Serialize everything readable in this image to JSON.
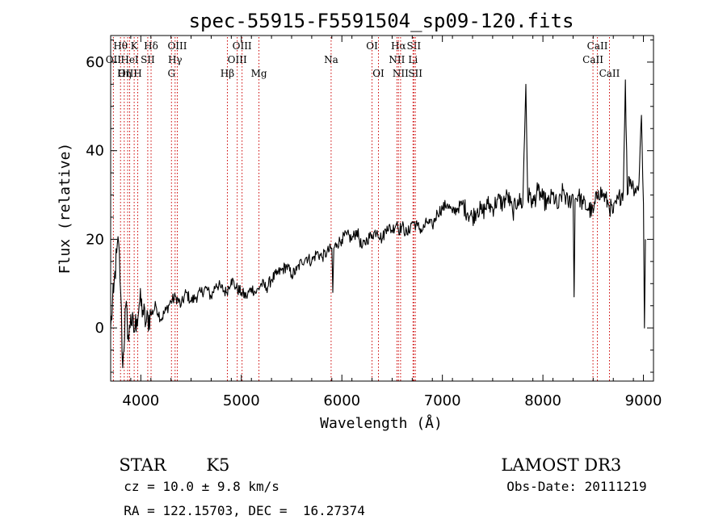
{
  "chart_data": {
    "type": "line",
    "title": "spec-55915-F5591504_sp09-120.fits",
    "xlabel": "Wavelength (Å)",
    "ylabel": "Flux (relative)",
    "xlim": [
      3700,
      9100
    ],
    "ylim": [
      -12,
      66
    ],
    "xticks": [
      4000,
      5000,
      6000,
      7000,
      8000,
      9000
    ],
    "yticks": [
      0,
      20,
      40,
      60
    ],
    "grid": false,
    "series": [
      {
        "name": "flux",
        "x": [
          3700,
          3730,
          3760,
          3780,
          3800,
          3820,
          3850,
          3880,
          3900,
          3930,
          3960,
          3990,
          4020,
          4050,
          4100,
          4150,
          4200,
          4250,
          4300,
          4350,
          4400,
          4450,
          4500,
          4550,
          4600,
          4650,
          4700,
          4750,
          4800,
          4850,
          4900,
          4950,
          5000,
          5050,
          5100,
          5150,
          5200,
          5250,
          5300,
          5350,
          5400,
          5450,
          5500,
          5550,
          5600,
          5650,
          5700,
          5750,
          5800,
          5850,
          5900,
          5910,
          5920,
          5950,
          6000,
          6050,
          6100,
          6150,
          6200,
          6250,
          6300,
          6350,
          6400,
          6450,
          6500,
          6550,
          6563,
          6600,
          6650,
          6700,
          6750,
          6800,
          6850,
          6900,
          6950,
          7000,
          7050,
          7100,
          7150,
          7200,
          7250,
          7300,
          7350,
          7400,
          7450,
          7500,
          7550,
          7600,
          7650,
          7700,
          7750,
          7800,
          7830,
          7850,
          7870,
          7900,
          7950,
          8000,
          8050,
          8100,
          8150,
          8200,
          8250,
          8300,
          8310,
          8320,
          8350,
          8400,
          8450,
          8500,
          8550,
          8600,
          8650,
          8700,
          8750,
          8800,
          8820,
          8840,
          8860,
          8900,
          8950,
          8980,
          9000,
          9010,
          9020
        ],
        "y": [
          0,
          8,
          17,
          19,
          8,
          -9,
          5,
          -3,
          3,
          -1,
          2,
          6,
          4,
          1,
          3,
          5,
          2,
          4,
          6,
          7,
          5,
          8,
          6,
          7,
          8,
          9,
          7,
          10,
          9,
          8,
          11,
          9,
          8,
          7,
          9,
          8,
          10,
          9,
          11,
          12,
          13,
          14,
          12,
          13,
          15,
          16,
          15,
          17,
          16,
          17,
          18,
          8,
          18,
          19,
          20,
          21,
          20,
          22,
          18,
          20,
          21,
          22,
          20,
          23,
          22,
          24,
          22,
          23,
          21,
          24,
          23,
          22,
          24,
          23,
          26,
          27,
          28,
          26,
          27,
          28,
          26,
          25,
          27,
          26,
          28,
          27,
          29,
          28,
          30,
          26,
          29,
          28,
          55,
          29,
          30,
          28,
          31,
          29,
          28,
          30,
          27,
          31,
          28,
          30,
          7,
          29,
          30,
          28,
          27,
          26,
          31,
          30,
          28,
          26,
          29,
          31,
          56,
          30,
          34,
          32,
          31,
          48,
          28,
          0,
          20
        ]
      }
    ],
    "line_markers": [
      {
        "label": "Hθ",
        "wave": 3798,
        "row": 1
      },
      {
        "label": "OII",
        "wave": 3727,
        "row": 2
      },
      {
        "label": "OIII",
        "wave": 3869,
        "row": 3
      },
      {
        "label": "K",
        "wave": 3934,
        "row": 1
      },
      {
        "label": "H",
        "wave": 3969,
        "row": 3
      },
      {
        "label": "HeI",
        "wave": 3889,
        "row": 2
      },
      {
        "label": "Hη",
        "wave": 3835,
        "row": 3
      },
      {
        "label": "SII",
        "wave": 4069,
        "row": 2
      },
      {
        "label": "Hδ",
        "wave": 4102,
        "row": 1
      },
      {
        "label": "OIII",
        "wave": 4363,
        "row": 1
      },
      {
        "label": "Hγ",
        "wave": 4341,
        "row": 2
      },
      {
        "label": "G",
        "wave": 4305,
        "row": 3
      },
      {
        "label": "OIII",
        "wave": 5007,
        "row": 1
      },
      {
        "label": "OIII",
        "wave": 4959,
        "row": 2
      },
      {
        "label": "Hβ",
        "wave": 4861,
        "row": 3
      },
      {
        "label": "Mg",
        "wave": 5175,
        "row": 3
      },
      {
        "label": "Na",
        "wave": 5893,
        "row": 2
      },
      {
        "label": "OI",
        "wave": 6300,
        "row": 1
      },
      {
        "label": "OI",
        "wave": 6364,
        "row": 3
      },
      {
        "label": "Hα",
        "wave": 6563,
        "row": 1
      },
      {
        "label": "SII",
        "wave": 6716,
        "row": 1
      },
      {
        "label": "NII",
        "wave": 6548,
        "row": 2
      },
      {
        "label": "Li",
        "wave": 6708,
        "row": 2
      },
      {
        "label": "NII",
        "wave": 6584,
        "row": 3
      },
      {
        "label": "SII",
        "wave": 6731,
        "row": 3
      },
      {
        "label": "CaII",
        "wave": 8542,
        "row": 1
      },
      {
        "label": "CaII",
        "wave": 8498,
        "row": 2
      },
      {
        "label": "CaII",
        "wave": 8662,
        "row": 3
      }
    ]
  },
  "info": {
    "object_class": "STAR",
    "subclass": "K5",
    "survey": "LAMOST DR3",
    "redshift": "cz = 10.0 ± 9.8 km/s",
    "obs_date": "Obs-Date: 20111219",
    "coords": "RA = 122.15703, DEC =  16.27374"
  },
  "colors": {
    "line": "#000000",
    "marker": "#cc0000",
    "axis": "#000000"
  }
}
